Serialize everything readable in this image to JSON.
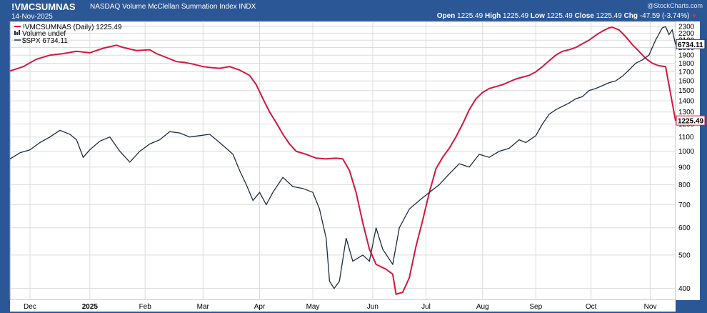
{
  "header": {
    "symbol": "!VMCSUMNAS",
    "description": "NASDAQ Volume McClellan Summation Index",
    "exchange": "INDX",
    "date": "14-Nov-2025",
    "brand": "@StockCharts.com",
    "open_label": "Open",
    "open": "1225.49",
    "high_label": "High",
    "high": "1225.49",
    "low_label": "Low",
    "low": "1225.49",
    "close_label": "Close",
    "close": "1225.49",
    "chg_label": "Chg",
    "chg": "-47.59 (-3.74%)"
  },
  "legend": {
    "item1": "!VMCSUMNAS (Daily) 1225.49",
    "item2": "Volume undef",
    "item3": "$SPX 6734.11"
  },
  "colors": {
    "frame": "#2b5797",
    "plot_bg": "#ffffff",
    "grid": "#dcdcdc",
    "summation": "#d6163a",
    "spx": "#1c2b43"
  },
  "chart_data": {
    "type": "line",
    "y_scale": "log",
    "ylim": [
      370,
      2380
    ],
    "y_ticks": [
      400,
      500,
      600,
      700,
      800,
      900,
      1000,
      1100,
      1200,
      1300,
      1400,
      1500,
      1600,
      1700,
      1800,
      1900,
      2000,
      2100,
      2200,
      2300
    ],
    "x_ticks": [
      "Dec",
      "2025",
      "Feb",
      "Mar",
      "Apr",
      "May",
      "Jun",
      "Jul",
      "Aug",
      "Sep",
      "Oct",
      "Nov"
    ],
    "x_tick_t": [
      0.03,
      0.12,
      0.203,
      0.29,
      0.375,
      0.455,
      0.545,
      0.625,
      0.71,
      0.79,
      0.873,
      0.962
    ],
    "last_value_labels": {
      "spx": "6734.11",
      "summation": "1225.49"
    },
    "series": [
      {
        "name": "!VMCSUMNAS (Daily) 1225.49",
        "key": "summation",
        "points": [
          [
            0.0,
            1710
          ],
          [
            0.02,
            1760
          ],
          [
            0.04,
            1850
          ],
          [
            0.06,
            1900
          ],
          [
            0.08,
            1920
          ],
          [
            0.1,
            1950
          ],
          [
            0.12,
            1930
          ],
          [
            0.14,
            1990
          ],
          [
            0.16,
            2030
          ],
          [
            0.17,
            2000
          ],
          [
            0.19,
            1960
          ],
          [
            0.21,
            1970
          ],
          [
            0.22,
            1920
          ],
          [
            0.235,
            1870
          ],
          [
            0.25,
            1820
          ],
          [
            0.262,
            1810
          ],
          [
            0.275,
            1790
          ],
          [
            0.29,
            1760
          ],
          [
            0.3,
            1750
          ],
          [
            0.315,
            1740
          ],
          [
            0.33,
            1760
          ],
          [
            0.345,
            1720
          ],
          [
            0.36,
            1660
          ],
          [
            0.37,
            1560
          ],
          [
            0.38,
            1420
          ],
          [
            0.39,
            1300
          ],
          [
            0.4,
            1210
          ],
          [
            0.41,
            1120
          ],
          [
            0.42,
            1050
          ],
          [
            0.43,
            1000
          ],
          [
            0.445,
            980
          ],
          [
            0.46,
            955
          ],
          [
            0.475,
            950
          ],
          [
            0.49,
            955
          ],
          [
            0.5,
            950
          ],
          [
            0.51,
            880
          ],
          [
            0.52,
            760
          ],
          [
            0.53,
            620
          ],
          [
            0.54,
            520
          ],
          [
            0.55,
            470
          ],
          [
            0.565,
            455
          ],
          [
            0.575,
            440
          ],
          [
            0.58,
            385
          ],
          [
            0.59,
            390
          ],
          [
            0.6,
            430
          ],
          [
            0.61,
            530
          ],
          [
            0.62,
            630
          ],
          [
            0.63,
            760
          ],
          [
            0.64,
            890
          ],
          [
            0.65,
            960
          ],
          [
            0.66,
            1020
          ],
          [
            0.67,
            1100
          ],
          [
            0.68,
            1200
          ],
          [
            0.69,
            1320
          ],
          [
            0.7,
            1420
          ],
          [
            0.71,
            1480
          ],
          [
            0.72,
            1520
          ],
          [
            0.73,
            1540
          ],
          [
            0.74,
            1560
          ],
          [
            0.75,
            1590
          ],
          [
            0.76,
            1620
          ],
          [
            0.77,
            1640
          ],
          [
            0.78,
            1660
          ],
          [
            0.79,
            1700
          ],
          [
            0.8,
            1760
          ],
          [
            0.81,
            1830
          ],
          [
            0.82,
            1900
          ],
          [
            0.83,
            1950
          ],
          [
            0.84,
            1970
          ],
          [
            0.85,
            2000
          ],
          [
            0.86,
            2050
          ],
          [
            0.87,
            2100
          ],
          [
            0.88,
            2170
          ],
          [
            0.89,
            2230
          ],
          [
            0.9,
            2280
          ],
          [
            0.905,
            2290
          ],
          [
            0.915,
            2250
          ],
          [
            0.925,
            2150
          ],
          [
            0.935,
            2040
          ],
          [
            0.945,
            1950
          ],
          [
            0.955,
            1860
          ],
          [
            0.965,
            1800
          ],
          [
            0.975,
            1770
          ],
          [
            0.985,
            1760
          ],
          [
            1.0,
            1225
          ]
        ]
      },
      {
        "name": "$SPX 6734.11",
        "key": "spx",
        "points": [
          [
            0.0,
            950
          ],
          [
            0.015,
            990
          ],
          [
            0.03,
            1010
          ],
          [
            0.045,
            1060
          ],
          [
            0.06,
            1100
          ],
          [
            0.075,
            1150
          ],
          [
            0.09,
            1120
          ],
          [
            0.1,
            1080
          ],
          [
            0.11,
            960
          ],
          [
            0.12,
            1010
          ],
          [
            0.135,
            1070
          ],
          [
            0.15,
            1100
          ],
          [
            0.165,
            1000
          ],
          [
            0.18,
            930
          ],
          [
            0.195,
            1000
          ],
          [
            0.21,
            1050
          ],
          [
            0.225,
            1080
          ],
          [
            0.24,
            1140
          ],
          [
            0.255,
            1130
          ],
          [
            0.27,
            1100
          ],
          [
            0.285,
            1110
          ],
          [
            0.3,
            1120
          ],
          [
            0.31,
            1080
          ],
          [
            0.32,
            1040
          ],
          [
            0.335,
            980
          ],
          [
            0.345,
            880
          ],
          [
            0.355,
            800
          ],
          [
            0.365,
            720
          ],
          [
            0.375,
            760
          ],
          [
            0.385,
            700
          ],
          [
            0.395,
            760
          ],
          [
            0.41,
            840
          ],
          [
            0.425,
            790
          ],
          [
            0.44,
            780
          ],
          [
            0.455,
            760
          ],
          [
            0.465,
            680
          ],
          [
            0.475,
            560
          ],
          [
            0.48,
            420
          ],
          [
            0.487,
            400
          ],
          [
            0.495,
            420
          ],
          [
            0.505,
            560
          ],
          [
            0.515,
            480
          ],
          [
            0.53,
            500
          ],
          [
            0.54,
            480
          ],
          [
            0.55,
            600
          ],
          [
            0.56,
            520
          ],
          [
            0.575,
            470
          ],
          [
            0.585,
            600
          ],
          [
            0.6,
            680
          ],
          [
            0.615,
            720
          ],
          [
            0.63,
            760
          ],
          [
            0.645,
            800
          ],
          [
            0.66,
            860
          ],
          [
            0.675,
            920
          ],
          [
            0.69,
            900
          ],
          [
            0.705,
            980
          ],
          [
            0.72,
            960
          ],
          [
            0.735,
            1000
          ],
          [
            0.75,
            1020
          ],
          [
            0.765,
            1080
          ],
          [
            0.775,
            1060
          ],
          [
            0.79,
            1110
          ],
          [
            0.8,
            1200
          ],
          [
            0.81,
            1280
          ],
          [
            0.82,
            1320
          ],
          [
            0.83,
            1350
          ],
          [
            0.84,
            1380
          ],
          [
            0.85,
            1420
          ],
          [
            0.86,
            1440
          ],
          [
            0.87,
            1500
          ],
          [
            0.88,
            1520
          ],
          [
            0.89,
            1550
          ],
          [
            0.9,
            1580
          ],
          [
            0.91,
            1600
          ],
          [
            0.92,
            1650
          ],
          [
            0.93,
            1720
          ],
          [
            0.94,
            1800
          ],
          [
            0.95,
            1840
          ],
          [
            0.96,
            1900
          ],
          [
            0.97,
            2100
          ],
          [
            0.98,
            2280
          ],
          [
            0.985,
            2300
          ],
          [
            0.99,
            2180
          ],
          [
            0.995,
            2250
          ],
          [
            1.0,
            2040
          ]
        ]
      }
    ]
  }
}
